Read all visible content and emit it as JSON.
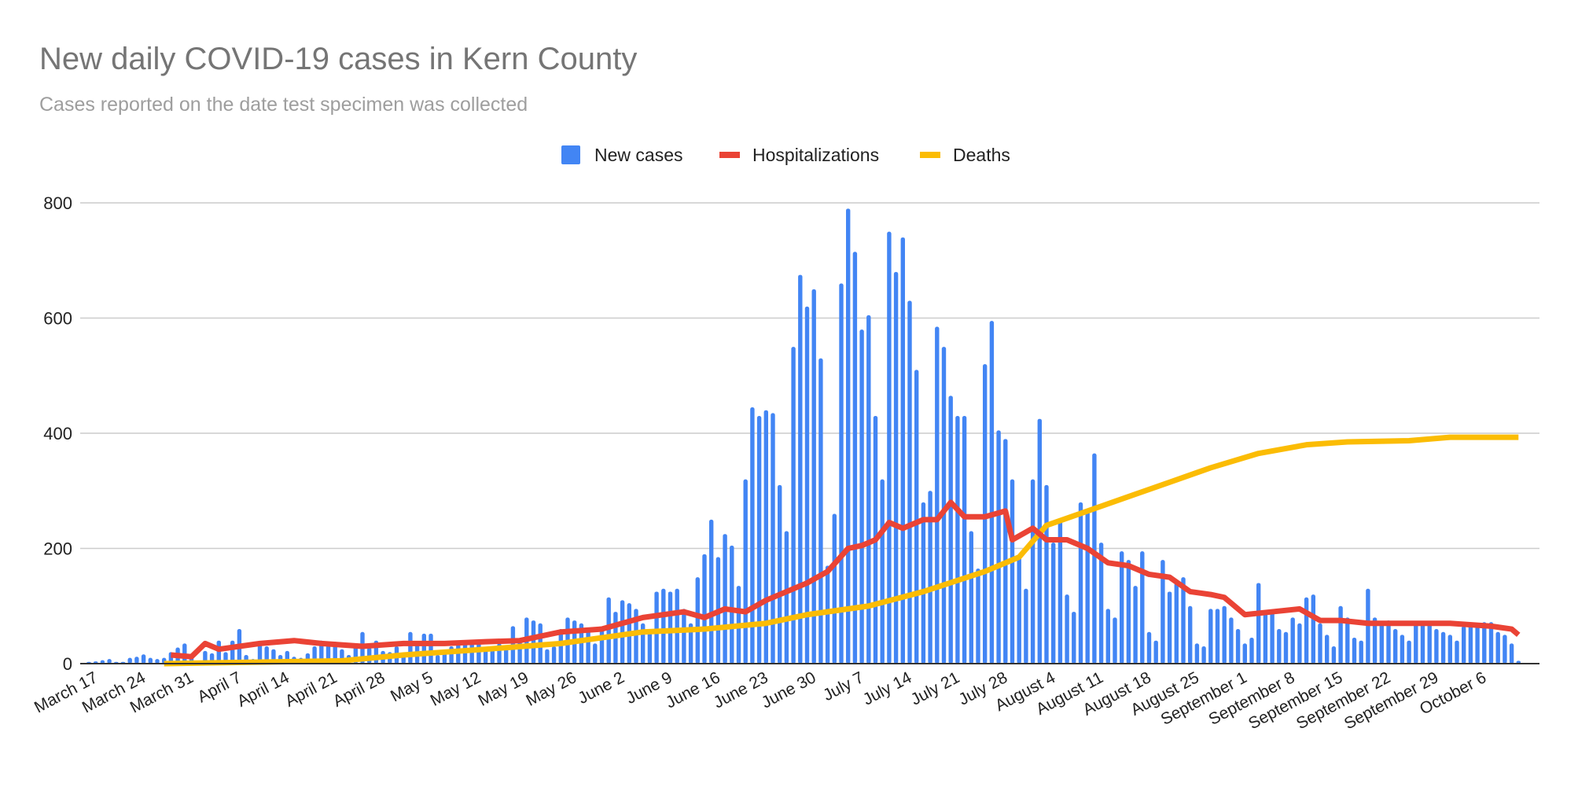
{
  "chart_data": {
    "type": "bar+line",
    "title": "New daily COVID-19 cases in Kern County",
    "subtitle": "Cases reported on the date test specimen was collected",
    "legend_position": "top-center",
    "ylim": [
      0,
      800
    ],
    "yticks": [
      0,
      200,
      400,
      600,
      800
    ],
    "grid": true,
    "start_date": "March 16",
    "xtick_labels": [
      "March 17",
      "March 24",
      "March 31",
      "April 7",
      "April 14",
      "April 21",
      "April 28",
      "May 5",
      "May 12",
      "May 19",
      "May 26",
      "June 2",
      "June 9",
      "June 16",
      "June 23",
      "June 30",
      "July 7",
      "July 14",
      "July 21",
      "July 28",
      "August 4",
      "August 11",
      "August 18",
      "August 25",
      "September 1",
      "September 8",
      "September 15",
      "September 22",
      "September 29",
      "October 6"
    ],
    "xtick_first_day_index": 1,
    "xtick_step_days": 7,
    "series": [
      {
        "name": "New cases",
        "type": "bar",
        "color": "#4285f4",
        "values": [
          3,
          4,
          6,
          8,
          3,
          3,
          10,
          12,
          16,
          10,
          8,
          10,
          20,
          28,
          35,
          12,
          5,
          22,
          18,
          40,
          20,
          40,
          60,
          15,
          8,
          35,
          30,
          25,
          15,
          22,
          12,
          10,
          18,
          30,
          40,
          32,
          38,
          25,
          15,
          30,
          55,
          28,
          40,
          22,
          20,
          30,
          18,
          55,
          35,
          52,
          52,
          15,
          20,
          30,
          35,
          40,
          38,
          40,
          25,
          28,
          35,
          30,
          65,
          40,
          80,
          75,
          70,
          25,
          30,
          60,
          80,
          75,
          70,
          62,
          35,
          60,
          115,
          90,
          110,
          105,
          95,
          70,
          60,
          125,
          130,
          125,
          130,
          95,
          70,
          150,
          190,
          250,
          185,
          225,
          205,
          135,
          320,
          445,
          430,
          440,
          435,
          310,
          230,
          550,
          675,
          620,
          650,
          530,
          170,
          260,
          660,
          790,
          715,
          580,
          605,
          430,
          320,
          750,
          680,
          740,
          630,
          510,
          280,
          300,
          585,
          550,
          465,
          430,
          430,
          230,
          165,
          520,
          595,
          405,
          390,
          320,
          185,
          130,
          320,
          425,
          310,
          210,
          250,
          120,
          90,
          280,
          265,
          365,
          210,
          95,
          80,
          195,
          180,
          135,
          195,
          55,
          40,
          180,
          125,
          140,
          150,
          100,
          35,
          30,
          95,
          95,
          100,
          80,
          60,
          35,
          45,
          140,
          90,
          90,
          60,
          55,
          80,
          70,
          115,
          120,
          70,
          50,
          30,
          100,
          80,
          45,
          40,
          130,
          80,
          70,
          75,
          60,
          50,
          40,
          70,
          72,
          70,
          60,
          55,
          50,
          40,
          65,
          70,
          70,
          72,
          72,
          55,
          50,
          35,
          5
        ]
      },
      {
        "name": "Hospitalizations",
        "type": "line",
        "color": "#ea4335",
        "points": [
          [
            12,
            15
          ],
          [
            15,
            12
          ],
          [
            17,
            35
          ],
          [
            19,
            25
          ],
          [
            25,
            35
          ],
          [
            30,
            40
          ],
          [
            34,
            35
          ],
          [
            40,
            30
          ],
          [
            46,
            35
          ],
          [
            52,
            35
          ],
          [
            58,
            38
          ],
          [
            63,
            40
          ],
          [
            69,
            55
          ],
          [
            75,
            60
          ],
          [
            81,
            80
          ],
          [
            87,
            90
          ],
          [
            90,
            80
          ],
          [
            93,
            95
          ],
          [
            96,
            90
          ],
          [
            99,
            110
          ],
          [
            102,
            125
          ],
          [
            105,
            140
          ],
          [
            108,
            160
          ],
          [
            111,
            200
          ],
          [
            113,
            205
          ],
          [
            115,
            215
          ],
          [
            117,
            245
          ],
          [
            119,
            235
          ],
          [
            122,
            250
          ],
          [
            124,
            250
          ],
          [
            126,
            280
          ],
          [
            128,
            255
          ],
          [
            131,
            255
          ],
          [
            134,
            265
          ],
          [
            135,
            215
          ],
          [
            138,
            235
          ],
          [
            140,
            215
          ],
          [
            143,
            215
          ],
          [
            146,
            200
          ],
          [
            149,
            175
          ],
          [
            152,
            170
          ],
          [
            155,
            155
          ],
          [
            158,
            150
          ],
          [
            161,
            125
          ],
          [
            164,
            120
          ],
          [
            166,
            115
          ],
          [
            169,
            85
          ],
          [
            173,
            90
          ],
          [
            177,
            95
          ],
          [
            180,
            75
          ],
          [
            183,
            75
          ],
          [
            187,
            70
          ],
          [
            193,
            70
          ],
          [
            199,
            70
          ],
          [
            205,
            65
          ],
          [
            208,
            60
          ],
          [
            209,
            50
          ]
        ]
      },
      {
        "name": "Deaths",
        "type": "line",
        "color": "#fbbc04",
        "points": [
          [
            11,
            0
          ],
          [
            37,
            5
          ],
          [
            46,
            15
          ],
          [
            58,
            25
          ],
          [
            69,
            35
          ],
          [
            75,
            45
          ],
          [
            81,
            55
          ],
          [
            90,
            60
          ],
          [
            99,
            70
          ],
          [
            105,
            85
          ],
          [
            114,
            100
          ],
          [
            122,
            125
          ],
          [
            131,
            160
          ],
          [
            136,
            185
          ],
          [
            140,
            240
          ],
          [
            146,
            265
          ],
          [
            152,
            290
          ],
          [
            158,
            315
          ],
          [
            164,
            340
          ],
          [
            171,
            365
          ],
          [
            178,
            380
          ],
          [
            184,
            385
          ],
          [
            193,
            387
          ],
          [
            199,
            393
          ],
          [
            209,
            393
          ]
        ]
      }
    ]
  }
}
